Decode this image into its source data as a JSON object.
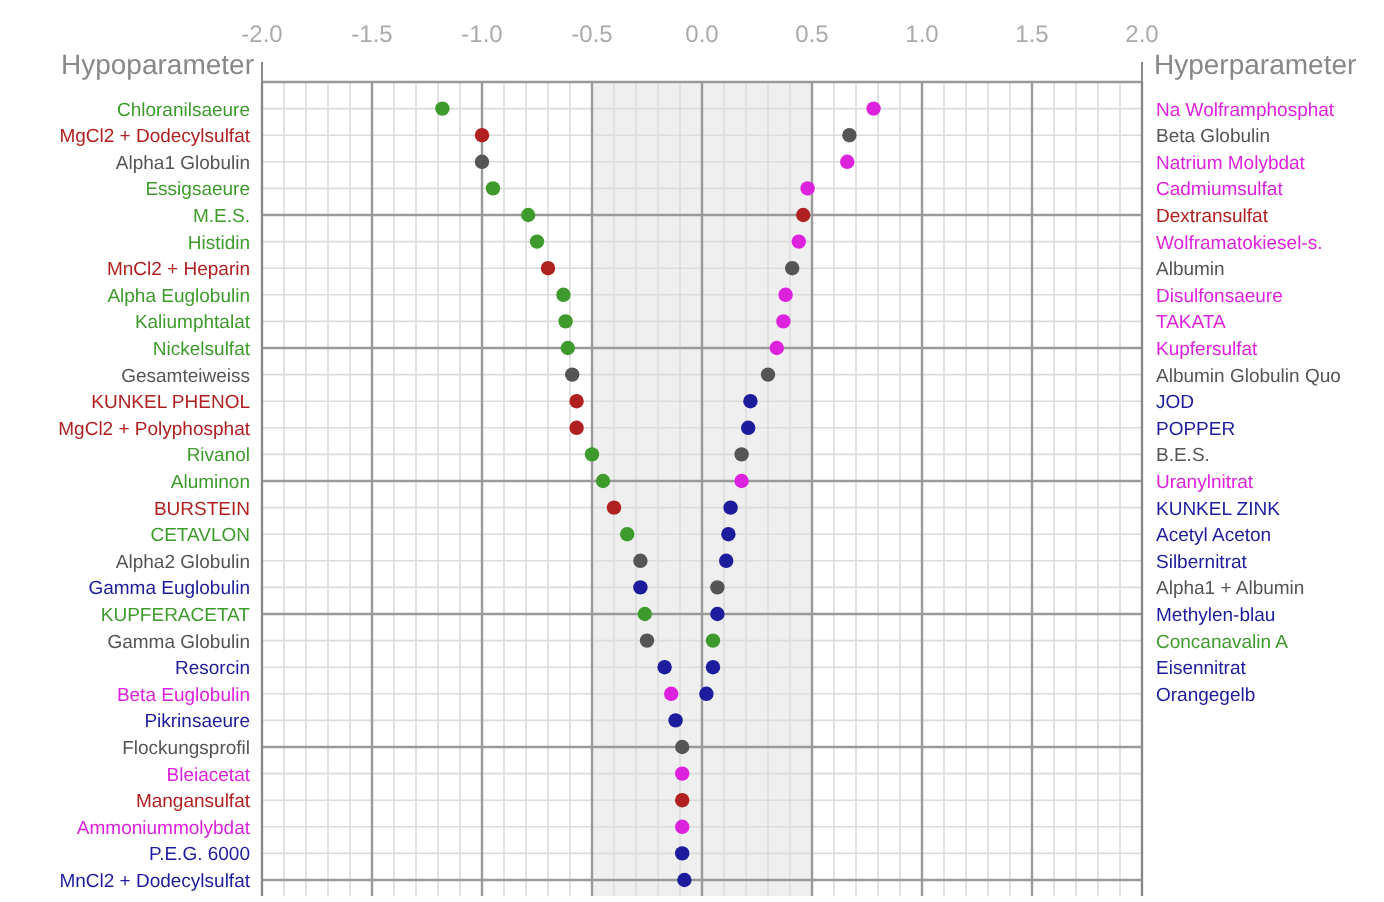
{
  "chart_data": {
    "type": "scatter",
    "orientation": "horizontal",
    "annotations": [
      "Hypoparameter",
      "Hyperparameter"
    ],
    "categories": [
      "Chloranilsaeure",
      "MgCl2 + Dodecylsulfat",
      "Alpha1 Globulin",
      "Essigsaeure",
      "M.E.S.",
      "Histidin",
      "MnCl2 + Heparin",
      "Alpha Euglobulin",
      "Kaliumphtalat",
      "Nickelsulfat",
      "Gesamteiweiss",
      "KUNKEL PHENOL",
      "MgCl2 + Polyphosphat",
      "Rivanol",
      "Aluminon",
      "BURSTEIN",
      "CETAVLON",
      "Alpha2 Globulin",
      "Gamma Euglobulin",
      "KUPFERACETAT",
      "Gamma Globulin",
      "Resorcin",
      "Beta Euglobulin",
      "Pikrinsaeure",
      "Flockungsprofil",
      "Bleiacetat",
      "Mangansulfat",
      "Ammoniummolybdat",
      "P.E.G. 6000",
      "MnCl2 + Dodecylsulfat"
    ],
    "y2_categories": [
      "Na Wolframphosphat",
      "Beta Globulin",
      "Natrium Molybdat",
      "Cadmiumsulfat",
      "Dextransulfat",
      "Wolframatokiesel-s.",
      "Albumin",
      "Disulfonsaeure",
      "TAKATA",
      "Kupfersulfat",
      "Albumin Globulin Quo",
      "JOD",
      "POPPER",
      "B.E.S.",
      "Uranylnitrat",
      "KUNKEL ZINK",
      "Acetyl Aceton",
      "Silbernitrat",
      "Alpha1 + Albumin",
      "Methylen-blau",
      "Concanavalin A",
      "Eisennitrat",
      "Orangegelb",
      null,
      null,
      null,
      null,
      null,
      null,
      null
    ],
    "series": [
      {
        "values": [
          -1.18,
          -1.0,
          -1.0,
          -0.95,
          -0.79,
          -0.75,
          -0.7,
          -0.63,
          -0.62,
          -0.61,
          -0.59,
          -0.57,
          -0.57,
          -0.5,
          -0.45,
          -0.4,
          -0.34,
          -0.28,
          -0.28,
          -0.26,
          -0.25,
          -0.17,
          -0.14,
          -0.12,
          -0.09,
          -0.09,
          -0.09,
          -0.09,
          -0.09,
          -0.08
        ],
        "colors": [
          "#3f9a2e",
          "#b02020",
          "#555555",
          "#3f9a2e",
          "#3f9a2e",
          "#3f9a2e",
          "#b02020",
          "#3f9a2e",
          "#3f9a2e",
          "#3f9a2e",
          "#555555",
          "#b02020",
          "#b02020",
          "#3f9a2e",
          "#3f9a2e",
          "#b02020",
          "#3f9a2e",
          "#555555",
          "#1c1c9c",
          "#3f9a2e",
          "#555555",
          "#1c1c9c",
          "#dd22dd",
          "#1c1c9c",
          "#555555",
          "#dd22dd",
          "#b02020",
          "#dd22dd",
          "#1c1c9c",
          "#1c1c9c"
        ]
      },
      {
        "axis": "y2",
        "values": [
          0.78,
          0.67,
          0.66,
          0.48,
          0.46,
          0.44,
          0.41,
          0.38,
          0.37,
          0.34,
          0.3,
          0.22,
          0.21,
          0.18,
          0.18,
          0.13,
          0.12,
          0.11,
          0.07,
          0.07,
          0.05,
          0.05,
          0.02,
          null,
          null,
          null,
          null,
          null,
          null,
          null
        ],
        "colors": [
          "#dd22dd",
          "#555555",
          "#dd22dd",
          "#dd22dd",
          "#b02020",
          "#dd22dd",
          "#555555",
          "#dd22dd",
          "#dd22dd",
          "#dd22dd",
          "#555555",
          "#1c1c9c",
          "#1c1c9c",
          "#555555",
          "#dd22dd",
          "#1c1c9c",
          "#1c1c9c",
          "#1c1c9c",
          "#555555",
          "#1c1c9c",
          "#3f9a2e",
          "#1c1c9c",
          "#1c1c9c",
          null,
          null,
          null,
          null,
          null,
          null,
          null
        ]
      }
    ],
    "xlim": [
      -2,
      2
    ],
    "xticks": [
      {
        "value": -2,
        "label": "-2.0"
      },
      {
        "value": -1.5,
        "label": "-1.5"
      },
      {
        "value": -1,
        "label": "-1.0"
      },
      {
        "value": -0.5,
        "label": "-0.5"
      },
      {
        "value": 0,
        "label": "0.0"
      },
      {
        "value": 0.5,
        "label": "0.5"
      },
      {
        "value": 1,
        "label": "1.0"
      },
      {
        "value": 1.5,
        "label": "1.5"
      },
      {
        "value": 2,
        "label": "2.0"
      }
    ],
    "bands": [
      {
        "axis": "x",
        "from": -0.5,
        "to": 0.5,
        "color": "#efefef"
      }
    ],
    "grid": true,
    "marker": "circle"
  }
}
